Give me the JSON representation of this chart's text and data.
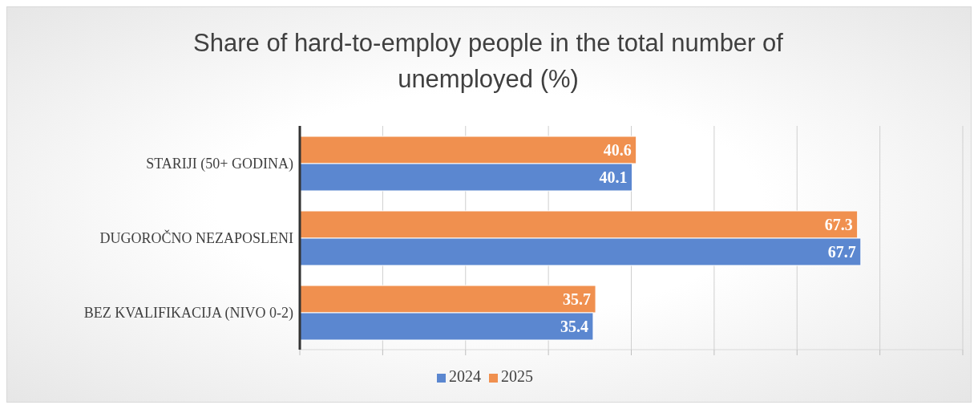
{
  "chart_data": {
    "type": "bar",
    "orientation": "horizontal",
    "title": "Share of hard-to-employ people in the total number of unemployed (%)",
    "categories": [
      "STARIJI (50+ GODINA)",
      "DUGOROČNO NEZAPOSLENI",
      "BEZ KVALIFIKACIJA (NIVO 0-2)"
    ],
    "series": [
      {
        "name": "2025",
        "color": "#f0904f",
        "values": [
          40.6,
          67.3,
          35.7
        ]
      },
      {
        "name": "2024",
        "color": "#5b87d0",
        "values": [
          40.1,
          67.7,
          35.4
        ]
      }
    ],
    "xlim": [
      0,
      80
    ],
    "xticks": [
      {
        "value": 0,
        "label": null
      },
      {
        "value": 10,
        "label": null
      },
      {
        "value": 20,
        "label": null
      },
      {
        "value": 30,
        "label": null
      },
      {
        "value": 40,
        "label": null
      },
      {
        "value": 50,
        "label": null
      },
      {
        "value": 60,
        "label": null
      },
      {
        "value": 70,
        "label": null
      },
      {
        "value": 80,
        "label": null
      }
    ],
    "tick_labels": "y",
    "grid": "x",
    "legend": "bottom",
    "data_labels": true
  }
}
